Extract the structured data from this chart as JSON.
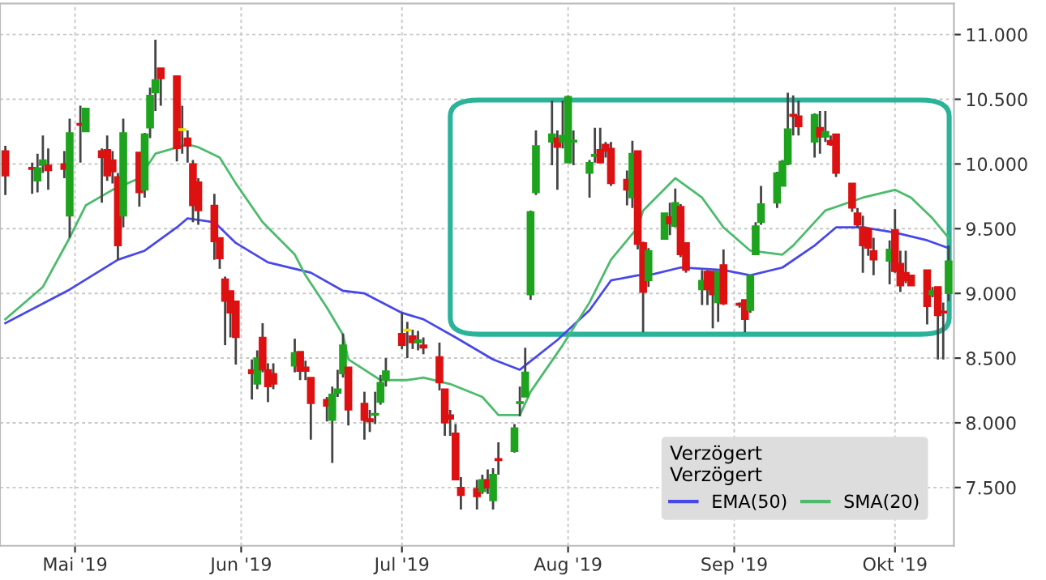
{
  "chart_data": {
    "type": "candlestick",
    "x": [
      "2019-04-18",
      "2019-04-23",
      "2019-04-24",
      "2019-04-25",
      "2019-04-26",
      "2019-04-29",
      "2019-04-30",
      "2019-05-02",
      "2019-05-03",
      "2019-05-06",
      "2019-05-07",
      "2019-05-08",
      "2019-05-09",
      "2019-05-10",
      "2019-05-13",
      "2019-05-14",
      "2019-05-15",
      "2019-05-16",
      "2019-05-17",
      "2019-05-20",
      "2019-05-21",
      "2019-05-22",
      "2019-05-23",
      "2019-05-24",
      "2019-05-27",
      "2019-05-28",
      "2019-05-29",
      "2019-05-30",
      "2019-05-31",
      "2019-06-03",
      "2019-06-04",
      "2019-06-05",
      "2019-06-06",
      "2019-06-07",
      "2019-06-11",
      "2019-06-12",
      "2019-06-13",
      "2019-06-14",
      "2019-06-17",
      "2019-06-18",
      "2019-06-19",
      "2019-06-20",
      "2019-06-21",
      "2019-06-24",
      "2019-06-25",
      "2019-06-26",
      "2019-06-27",
      "2019-06-28",
      "2019-07-01",
      "2019-07-02",
      "2019-07-03",
      "2019-07-04",
      "2019-07-05",
      "2019-07-08",
      "2019-07-09",
      "2019-07-10",
      "2019-07-11",
      "2019-07-12",
      "2019-07-15",
      "2019-07-16",
      "2019-07-17",
      "2019-07-18",
      "2019-07-19",
      "2019-07-22",
      "2019-07-23",
      "2019-07-24",
      "2019-07-25",
      "2019-07-26",
      "2019-07-29",
      "2019-07-30",
      "2019-07-31",
      "2019-08-01",
      "2019-08-02",
      "2019-08-05",
      "2019-08-06",
      "2019-08-07",
      "2019-08-08",
      "2019-08-09",
      "2019-08-12",
      "2019-08-13",
      "2019-08-14",
      "2019-08-15",
      "2019-08-16",
      "2019-08-19",
      "2019-08-20",
      "2019-08-21",
      "2019-08-22",
      "2019-08-23",
      "2019-08-26",
      "2019-08-27",
      "2019-08-28",
      "2019-08-29",
      "2019-08-30",
      "2019-09-02",
      "2019-09-03",
      "2019-09-04",
      "2019-09-05",
      "2019-09-06",
      "2019-09-09",
      "2019-09-10",
      "2019-09-11",
      "2019-09-12",
      "2019-09-13",
      "2019-09-16",
      "2019-09-17",
      "2019-09-18",
      "2019-09-19",
      "2019-09-20",
      "2019-09-23",
      "2019-09-24",
      "2019-09-25",
      "2019-09-26",
      "2019-09-27",
      "2019-09-30",
      "2019-10-01",
      "2019-10-02",
      "2019-10-03",
      "2019-10-04",
      "2019-10-07",
      "2019-10-08",
      "2019-10-09",
      "2019-10-10",
      "2019-10-11"
    ],
    "ohlc": [
      [
        10.1,
        10.14,
        9.76,
        9.91
      ],
      [
        9.97,
        10.01,
        9.77,
        9.96
      ],
      [
        9.87,
        10.08,
        9.78,
        9.97
      ],
      [
        9.99,
        10.22,
        9.93,
        10.03
      ],
      [
        9.99,
        10.12,
        9.8,
        9.95
      ],
      [
        10.0,
        10.1,
        9.89,
        9.96
      ],
      [
        9.6,
        10.35,
        9.43,
        10.24
      ],
      [
        10.31,
        10.45,
        10.01,
        10.3
      ],
      [
        10.25,
        10.43,
        10.25,
        10.43
      ],
      [
        10.1,
        10.12,
        9.7,
        10.05
      ],
      [
        10.11,
        10.22,
        9.87,
        9.91
      ],
      [
        10.03,
        10.1,
        9.85,
        9.94
      ],
      [
        9.9,
        9.93,
        9.26,
        9.37
      ],
      [
        9.6,
        10.35,
        9.51,
        10.24
      ],
      [
        10.09,
        10.09,
        9.67,
        9.78
      ],
      [
        9.8,
        10.24,
        9.74,
        10.23
      ],
      [
        10.28,
        10.59,
        10.2,
        10.53
      ],
      [
        10.55,
        10.96,
        10.41,
        10.65
      ],
      [
        10.74,
        10.74,
        10.45,
        10.66
      ],
      [
        10.68,
        10.68,
        10.02,
        10.12
      ],
      [
        10.26,
        10.45,
        10.08,
        10.26
      ],
      [
        10.2,
        10.26,
        10.01,
        10.14
      ],
      [
        10.0,
        10.03,
        9.55,
        9.68
      ],
      [
        9.86,
        9.89,
        9.53,
        9.64
      ],
      [
        9.68,
        9.77,
        9.26,
        9.4
      ],
      [
        9.43,
        9.43,
        9.19,
        9.27
      ],
      [
        9.11,
        9.13,
        8.6,
        8.94
      ],
      [
        9.02,
        9.02,
        8.66,
        8.85
      ],
      [
        8.94,
        8.94,
        8.45,
        8.66
      ],
      [
        8.41,
        8.49,
        8.18,
        8.38
      ],
      [
        8.3,
        8.56,
        8.26,
        8.5
      ],
      [
        8.66,
        8.77,
        8.39,
        8.41
      ],
      [
        8.41,
        8.46,
        8.16,
        8.28
      ],
      [
        8.38,
        8.46,
        8.26,
        8.3
      ],
      [
        8.44,
        8.65,
        8.39,
        8.54
      ],
      [
        8.55,
        8.55,
        8.33,
        8.4
      ],
      [
        8.43,
        8.48,
        8.33,
        8.4
      ],
      [
        8.35,
        8.35,
        7.87,
        8.15
      ],
      [
        8.18,
        8.2,
        8.01,
        8.13
      ],
      [
        8.02,
        8.28,
        7.69,
        8.22
      ],
      [
        8.23,
        8.41,
        8.2,
        8.26
      ],
      [
        8.38,
        8.69,
        8.35,
        8.6
      ],
      [
        8.43,
        8.43,
        7.98,
        8.1
      ],
      [
        8.15,
        8.24,
        7.87,
        8.02
      ],
      [
        8.03,
        8.1,
        7.93,
        8.01
      ],
      [
        8.06,
        8.24,
        7.99,
        8.07
      ],
      [
        8.16,
        8.37,
        8.14,
        8.31
      ],
      [
        8.33,
        8.5,
        8.28,
        8.4
      ],
      [
        8.69,
        8.85,
        8.57,
        8.6
      ],
      [
        8.71,
        8.78,
        8.5,
        8.71
      ],
      [
        8.67,
        8.72,
        8.57,
        8.62
      ],
      [
        8.62,
        8.71,
        8.56,
        8.64
      ],
      [
        8.6,
        8.66,
        8.53,
        8.58
      ],
      [
        8.51,
        8.62,
        8.25,
        8.31
      ],
      [
        8.26,
        8.26,
        7.9,
        8.0
      ],
      [
        8.06,
        8.1,
        7.9,
        8.03
      ],
      [
        7.92,
        7.99,
        7.56,
        7.56
      ],
      [
        7.5,
        7.58,
        7.33,
        7.44
      ],
      [
        7.49,
        7.56,
        7.33,
        7.43
      ],
      [
        7.47,
        7.6,
        7.45,
        7.56
      ],
      [
        7.56,
        7.64,
        7.45,
        7.5
      ],
      [
        7.4,
        7.65,
        7.33,
        7.6
      ],
      [
        7.72,
        7.85,
        7.6,
        7.71
      ],
      [
        7.78,
        7.99,
        7.77,
        7.96
      ],
      [
        8.15,
        8.28,
        8.05,
        8.16
      ],
      [
        8.2,
        8.58,
        8.2,
        8.39
      ],
      [
        8.99,
        9.64,
        8.95,
        9.63
      ],
      [
        9.78,
        10.26,
        9.76,
        10.14
      ],
      [
        10.17,
        10.49,
        9.99,
        10.23
      ],
      [
        10.2,
        10.26,
        9.8,
        10.13
      ],
      [
        10.17,
        10.49,
        10.12,
        10.22
      ],
      [
        10.01,
        10.53,
        10.01,
        10.52
      ],
      [
        10.17,
        10.26,
        9.99,
        10.18
      ],
      [
        9.93,
        10.03,
        9.74,
        10.01
      ],
      [
        10.06,
        10.28,
        10.01,
        10.07
      ],
      [
        10.11,
        10.28,
        10.01,
        10.01
      ],
      [
        10.15,
        10.17,
        10.05,
        10.1
      ],
      [
        10.12,
        10.17,
        9.83,
        9.85
      ],
      [
        9.88,
        9.95,
        9.68,
        9.8
      ],
      [
        9.74,
        10.18,
        9.66,
        10.08
      ],
      [
        10.1,
        10.1,
        9.34,
        9.38
      ],
      [
        9.39,
        9.4,
        8.7,
        9.01
      ],
      [
        9.1,
        9.35,
        9.05,
        9.33
      ],
      [
        9.42,
        9.62,
        9.42,
        9.62
      ],
      [
        9.59,
        9.7,
        9.45,
        9.54
      ],
      [
        9.52,
        9.81,
        9.51,
        9.7
      ],
      [
        9.67,
        9.69,
        9.28,
        9.3
      ],
      [
        9.39,
        9.39,
        9.16,
        9.18
      ],
      [
        9.03,
        9.18,
        8.91,
        9.1
      ],
      [
        9.17,
        9.18,
        8.91,
        9.03
      ],
      [
        9.17,
        9.17,
        8.73,
        8.99
      ],
      [
        8.93,
        9.17,
        8.78,
        9.17
      ],
      [
        9.22,
        9.34,
        8.91,
        8.92
      ],
      [
        8.92,
        8.93,
        8.89,
        8.91
      ],
      [
        8.95,
        8.95,
        8.7,
        8.8
      ],
      [
        8.87,
        9.14,
        8.85,
        9.14
      ],
      [
        9.3,
        9.55,
        9.3,
        9.52
      ],
      [
        9.55,
        9.83,
        9.53,
        9.69
      ],
      [
        9.7,
        9.94,
        9.66,
        9.93
      ],
      [
        9.83,
        10.03,
        9.83,
        10.02
      ],
      [
        10.0,
        10.55,
        9.99,
        10.27
      ],
      [
        10.38,
        10.53,
        10.22,
        10.37
      ],
      [
        10.37,
        10.49,
        10.22,
        10.29
      ],
      [
        10.17,
        10.39,
        10.05,
        10.38
      ],
      [
        10.28,
        10.41,
        10.08,
        10.21
      ],
      [
        10.21,
        10.41,
        10.17,
        10.25
      ],
      [
        10.18,
        10.22,
        10.14,
        10.15
      ],
      [
        10.23,
        10.23,
        9.9,
        9.93
      ],
      [
        9.85,
        9.85,
        9.63,
        9.66
      ],
      [
        9.62,
        9.66,
        9.51,
        9.53
      ],
      [
        9.51,
        9.6,
        9.16,
        9.37
      ],
      [
        9.5,
        9.51,
        9.29,
        9.35
      ],
      [
        9.33,
        9.43,
        9.14,
        9.26
      ],
      [
        9.25,
        9.41,
        9.07,
        9.34
      ],
      [
        9.49,
        9.65,
        9.16,
        9.17
      ],
      [
        9.23,
        9.33,
        9.01,
        9.06
      ],
      [
        9.16,
        9.33,
        9.08,
        9.1
      ],
      [
        9.14,
        9.14,
        9.06,
        9.06
      ],
      [
        9.18,
        9.18,
        8.76,
        8.9
      ],
      [
        8.99,
        9.05,
        8.97,
        9.02
      ],
      [
        9.05,
        9.05,
        8.49,
        8.83
      ],
      [
        8.86,
        8.93,
        8.49,
        8.85
      ],
      [
        9.0,
        9.37,
        8.94,
        9.25
      ]
    ],
    "colors": [
      "#dd1111",
      "#dd1111",
      "#1ea31e",
      "#1ea31e",
      "#dd1111",
      "#dd1111",
      "#1ea31e",
      "#dd1111",
      "#1ea31e",
      "#dd1111",
      "#dd1111",
      "#dd1111",
      "#dd1111",
      "#1ea31e",
      "#dd1111",
      "#1ea31e",
      "#1ea31e",
      "#1ea31e",
      "#dd1111",
      "#dd1111",
      "#f0e000",
      "#dd1111",
      "#dd1111",
      "#dd1111",
      "#dd1111",
      "#dd1111",
      "#dd1111",
      "#dd1111",
      "#dd1111",
      "#dd1111",
      "#1ea31e",
      "#dd1111",
      "#dd1111",
      "#dd1111",
      "#1ea31e",
      "#dd1111",
      "#dd1111",
      "#dd1111",
      "#dd1111",
      "#1ea31e",
      "#1ea31e",
      "#1ea31e",
      "#dd1111",
      "#dd1111",
      "#dd1111",
      "#1ea31e",
      "#1ea31e",
      "#1ea31e",
      "#dd1111",
      "#f0e000",
      "#dd1111",
      "#1ea31e",
      "#dd1111",
      "#dd1111",
      "#dd1111",
      "#dd1111",
      "#dd1111",
      "#dd1111",
      "#dd1111",
      "#1ea31e",
      "#dd1111",
      "#1ea31e",
      "#dd1111",
      "#1ea31e",
      "#1ea31e",
      "#1ea31e",
      "#1ea31e",
      "#1ea31e",
      "#1ea31e",
      "#dd1111",
      "#1ea31e",
      "#1ea31e",
      "#1ea31e",
      "#1ea31e",
      "#1ea31e",
      "#dd1111",
      "#dd1111",
      "#dd1111",
      "#dd1111",
      "#1ea31e",
      "#dd1111",
      "#dd1111",
      "#1ea31e",
      "#1ea31e",
      "#dd1111",
      "#1ea31e",
      "#dd1111",
      "#dd1111",
      "#1ea31e",
      "#dd1111",
      "#dd1111",
      "#1ea31e",
      "#dd1111",
      "#dd1111",
      "#dd1111",
      "#1ea31e",
      "#1ea31e",
      "#1ea31e",
      "#1ea31e",
      "#1ea31e",
      "#1ea31e",
      "#dd1111",
      "#dd1111",
      "#1ea31e",
      "#dd1111",
      "#1ea31e",
      "#dd1111",
      "#dd1111",
      "#dd1111",
      "#dd1111",
      "#dd1111",
      "#dd1111",
      "#dd1111",
      "#1ea31e",
      "#dd1111",
      "#dd1111",
      "#dd1111",
      "#dd1111",
      "#dd1111",
      "#1ea31e",
      "#dd1111",
      "#dd1111",
      "#1ea31e"
    ],
    "series": [
      {
        "name": "EMA(50)",
        "type": "line",
        "color": "#4848e8",
        "x": [
          "2019-04-18",
          "2019-04-30",
          "2019-05-09",
          "2019-05-14",
          "2019-05-20",
          "2019-05-22",
          "2019-05-27",
          "2019-05-31",
          "2019-06-06",
          "2019-06-14",
          "2019-06-20",
          "2019-06-24",
          "2019-07-01",
          "2019-07-05",
          "2019-07-11",
          "2019-07-18",
          "2019-07-23",
          "2019-07-30",
          "2019-08-05",
          "2019-08-09",
          "2019-08-14",
          "2019-08-16",
          "2019-08-22",
          "2019-08-30",
          "2019-09-04",
          "2019-09-10",
          "2019-09-16",
          "2019-09-20",
          "2019-09-25",
          "2019-10-01",
          "2019-10-07",
          "2019-10-11"
        ],
        "values": [
          8.77,
          9.03,
          9.26,
          9.33,
          9.51,
          9.58,
          9.55,
          9.39,
          9.24,
          9.16,
          9.02,
          9.0,
          8.85,
          8.8,
          8.66,
          8.49,
          8.41,
          8.64,
          8.87,
          9.1,
          9.14,
          9.14,
          9.2,
          9.18,
          9.14,
          9.2,
          9.37,
          9.51,
          9.51,
          9.47,
          9.41,
          9.35
        ]
      },
      {
        "name": "SMA(20)",
        "type": "line",
        "color": "#4cbb6c",
        "x": [
          "2019-04-18",
          "2019-04-25",
          "2019-04-30",
          "2019-05-03",
          "2019-05-08",
          "2019-05-13",
          "2019-05-16",
          "2019-05-22",
          "2019-05-24",
          "2019-05-28",
          "2019-05-31",
          "2019-06-05",
          "2019-06-11",
          "2019-06-13",
          "2019-06-17",
          "2019-06-20",
          "2019-06-21",
          "2019-06-27",
          "2019-07-02",
          "2019-07-05",
          "2019-07-10",
          "2019-07-16",
          "2019-07-19",
          "2019-07-23",
          "2019-07-25",
          "2019-07-31",
          "2019-08-05",
          "2019-08-09",
          "2019-08-14",
          "2019-08-15",
          "2019-08-21",
          "2019-08-26",
          "2019-08-30",
          "2019-09-04",
          "2019-09-10",
          "2019-09-12",
          "2019-09-18",
          "2019-09-25",
          "2019-10-01",
          "2019-10-04",
          "2019-10-08",
          "2019-10-11"
        ],
        "values": [
          8.8,
          9.05,
          9.43,
          9.68,
          9.8,
          9.89,
          10.08,
          10.15,
          10.13,
          10.05,
          9.85,
          9.55,
          9.3,
          9.14,
          8.89,
          8.68,
          8.49,
          8.33,
          8.33,
          8.35,
          8.3,
          8.2,
          8.06,
          8.06,
          8.24,
          8.6,
          8.93,
          9.26,
          9.51,
          9.64,
          9.89,
          9.74,
          9.51,
          9.33,
          9.3,
          9.37,
          9.64,
          9.74,
          9.8,
          9.74,
          9.58,
          9.43
        ]
      }
    ],
    "xlim": [
      "2019-04-17",
      "2019-10-12"
    ],
    "xticks": [
      {
        "value": "2019-05-01",
        "label": "Mai '19"
      },
      {
        "value": "2019-06-01",
        "label": "Jun '19"
      },
      {
        "value": "2019-07-01",
        "label": "Jul '19"
      },
      {
        "value": "2019-08-01",
        "label": "Aug '19"
      },
      {
        "value": "2019-09-01",
        "label": "Sep '19"
      },
      {
        "value": "2019-10-01",
        "label": "Okt '19"
      }
    ],
    "ylim": [
      7.05,
      11.24
    ],
    "yticks": [
      {
        "value": 7.5,
        "label": "7.500"
      },
      {
        "value": 8.0,
        "label": "8.000"
      },
      {
        "value": 8.5,
        "label": "8.500"
      },
      {
        "value": 9.0,
        "label": "9.000"
      },
      {
        "value": 9.5,
        "label": "9.500"
      },
      {
        "value": 10.0,
        "label": "10.000"
      },
      {
        "value": 10.5,
        "label": "10.500"
      },
      {
        "value": 11.0,
        "label": "11.000"
      }
    ],
    "grid": true,
    "legend": "bottom right",
    "legend_title": "Verzögert\nVerzögert"
  }
}
